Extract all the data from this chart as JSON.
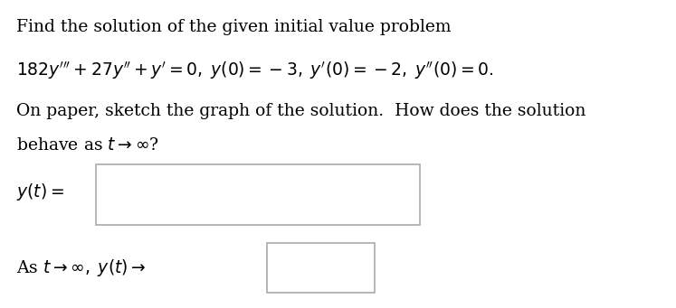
{
  "line1": "Find the solution of the given initial value problem",
  "line2_math": "$182y''' + 27y'' + y' = 0, \\; y(0) = -3, \\; y'(0) = -2, \\; y''(0) = 0.$",
  "line3": "On paper, sketch the graph of the solution.  How does the solution",
  "line4": "behave as $t \\to \\infty$?",
  "label_yt": "$y(t) =$",
  "label_as": "As $t \\to \\infty, \\; y(t) \\to$",
  "bg_color": "#ffffff",
  "text_color": "#000000",
  "box_edge_color": "#aaaaaa",
  "font_size": 13.5
}
